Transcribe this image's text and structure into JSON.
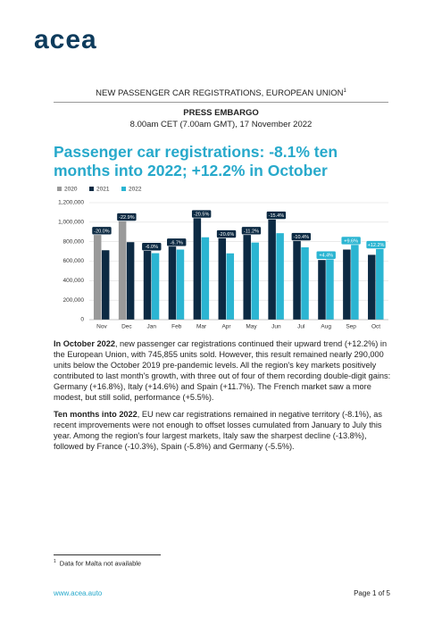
{
  "logo": "acea",
  "header": {
    "title": "NEW PASSENGER CAR REGISTRATIONS, EUROPEAN UNION",
    "footnote_ref": "1",
    "embargo": "PRESS EMBARGO",
    "time": "8.00am CET (7.00am GMT), 17 November 2022"
  },
  "title": "Passenger car registrations: -8.1% ten months into 2022; +12.2% in October",
  "chart_data": {
    "type": "bar",
    "categories": [
      "Nov",
      "Dec",
      "Jan",
      "Feb",
      "Mar",
      "Apr",
      "May",
      "Jun",
      "Jul",
      "Aug",
      "Sep",
      "Oct"
    ],
    "series": [
      {
        "name": "2020",
        "color": "#9a9a9a",
        "values": [
          890000,
          1030000,
          null,
          null,
          null,
          null,
          null,
          null,
          null,
          null,
          null,
          null
        ]
      },
      {
        "name": "2021",
        "color": "#0c2a43",
        "values": [
          712000,
          795000,
          726000,
          771000,
          1062000,
          856000,
          890000,
          1048000,
          828000,
          612000,
          719000,
          665000
        ]
      },
      {
        "name": "2022",
        "color": "#2bb5d2",
        "values": [
          null,
          null,
          682000,
          719000,
          845000,
          680000,
          791000,
          887000,
          742000,
          639000,
          788000,
          746000
        ]
      }
    ],
    "annotations": [
      "-20.0%",
      "-22.9%",
      "-6.0%",
      "-6.7%",
      "-20.5%",
      "-20.6%",
      "-11.2%",
      "-15.4%",
      "-10.4%",
      "+4.4%",
      "+9.6%",
      "+12.2%"
    ],
    "annotation_colors": [
      "#0c2a43",
      "#0c2a43",
      "#0c2a43",
      "#0c2a43",
      "#0c2a43",
      "#0c2a43",
      "#0c2a43",
      "#0c2a43",
      "#0c2a43",
      "#2bb5d2",
      "#2bb5d2",
      "#2bb5d2"
    ],
    "ylim": [
      0,
      1200000
    ],
    "yticks": [
      0,
      {
        "value": 200000,
        "label": "200,000"
      },
      {
        "value": 400000,
        "label": "400,000"
      },
      {
        "value": 600000,
        "label": "600,000"
      },
      {
        "value": 800000,
        "label": "800,000"
      },
      {
        "value": 1000000,
        "label": "1,000,000"
      },
      {
        "value": 1200000,
        "label": "1,200,000"
      }
    ],
    "grid": true,
    "legend": "top-left"
  },
  "paragraphs": [
    {
      "lead": "In October 2022",
      "text": ", new passenger car registrations continued their upward trend (+12.2%) in the European Union, with 745,855 units sold. However, this result remained nearly 290,000 units below the October 2019 pre-pandemic levels. All the region's key markets positively contributed to last month's growth, with three out of four of them recording double-digit gains: Germany (+16.8%), Italy (+14.6%) and Spain (+11.7%). The French market saw a more modest, but still solid, performance (+5.5%)."
    },
    {
      "lead": "Ten months into 2022",
      "text": ", EU new car registrations remained in negative territory (-8.1%), as recent improvements were not enough to offset losses cumulated from January to July this year. Among the region's four largest markets, Italy saw the sharpest decline (-13.8%), followed by France (-10.3%), Spain (-5.8%) and Germany (-5.5%)."
    }
  ],
  "footnote": {
    "ref": "1",
    "text": "Data for Malta not available"
  },
  "footer": {
    "url": "www.acea.auto",
    "page": "Page 1 of 5"
  }
}
